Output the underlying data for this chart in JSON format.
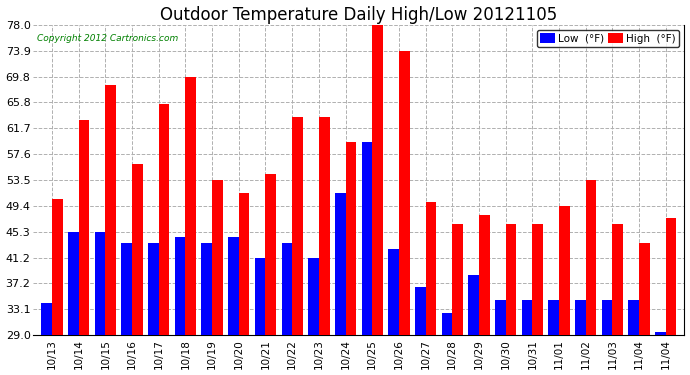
{
  "title": "Outdoor Temperature Daily High/Low 20121105",
  "copyright": "Copyright 2012 Cartronics.com",
  "legend_low": "Low  (°F)",
  "legend_high": "High  (°F)",
  "dates": [
    "10/13",
    "10/14",
    "10/15",
    "10/16",
    "10/17",
    "10/18",
    "10/19",
    "10/20",
    "10/21",
    "10/22",
    "10/23",
    "10/24",
    "10/25",
    "10/26",
    "10/27",
    "10/28",
    "10/29",
    "10/30",
    "10/31",
    "11/01",
    "11/02",
    "11/03",
    "11/04",
    "11/04"
  ],
  "high": [
    50.5,
    63.0,
    68.5,
    56.0,
    65.5,
    69.8,
    53.5,
    51.5,
    54.5,
    63.5,
    63.5,
    59.5,
    78.0,
    73.9,
    50.0,
    46.5,
    48.0,
    46.5,
    46.5,
    49.4,
    53.5,
    46.5,
    43.5,
    47.5
  ],
  "low": [
    34.0,
    45.3,
    45.3,
    43.5,
    43.5,
    44.5,
    43.5,
    44.5,
    41.2,
    43.5,
    41.2,
    51.5,
    59.5,
    42.5,
    36.5,
    32.5,
    38.5,
    34.5,
    34.5,
    34.5,
    34.5,
    34.5,
    34.5,
    29.5
  ],
  "ylim": [
    29.0,
    78.0
  ],
  "yticks": [
    29.0,
    33.1,
    37.2,
    41.2,
    45.3,
    49.4,
    53.5,
    57.6,
    61.7,
    65.8,
    69.8,
    73.9,
    78.0
  ],
  "color_low": "#0000ff",
  "color_high": "#ff0000",
  "bg_color": "#ffffff",
  "grid_color": "#b0b0b0",
  "title_fontsize": 12,
  "bar_width": 0.4
}
